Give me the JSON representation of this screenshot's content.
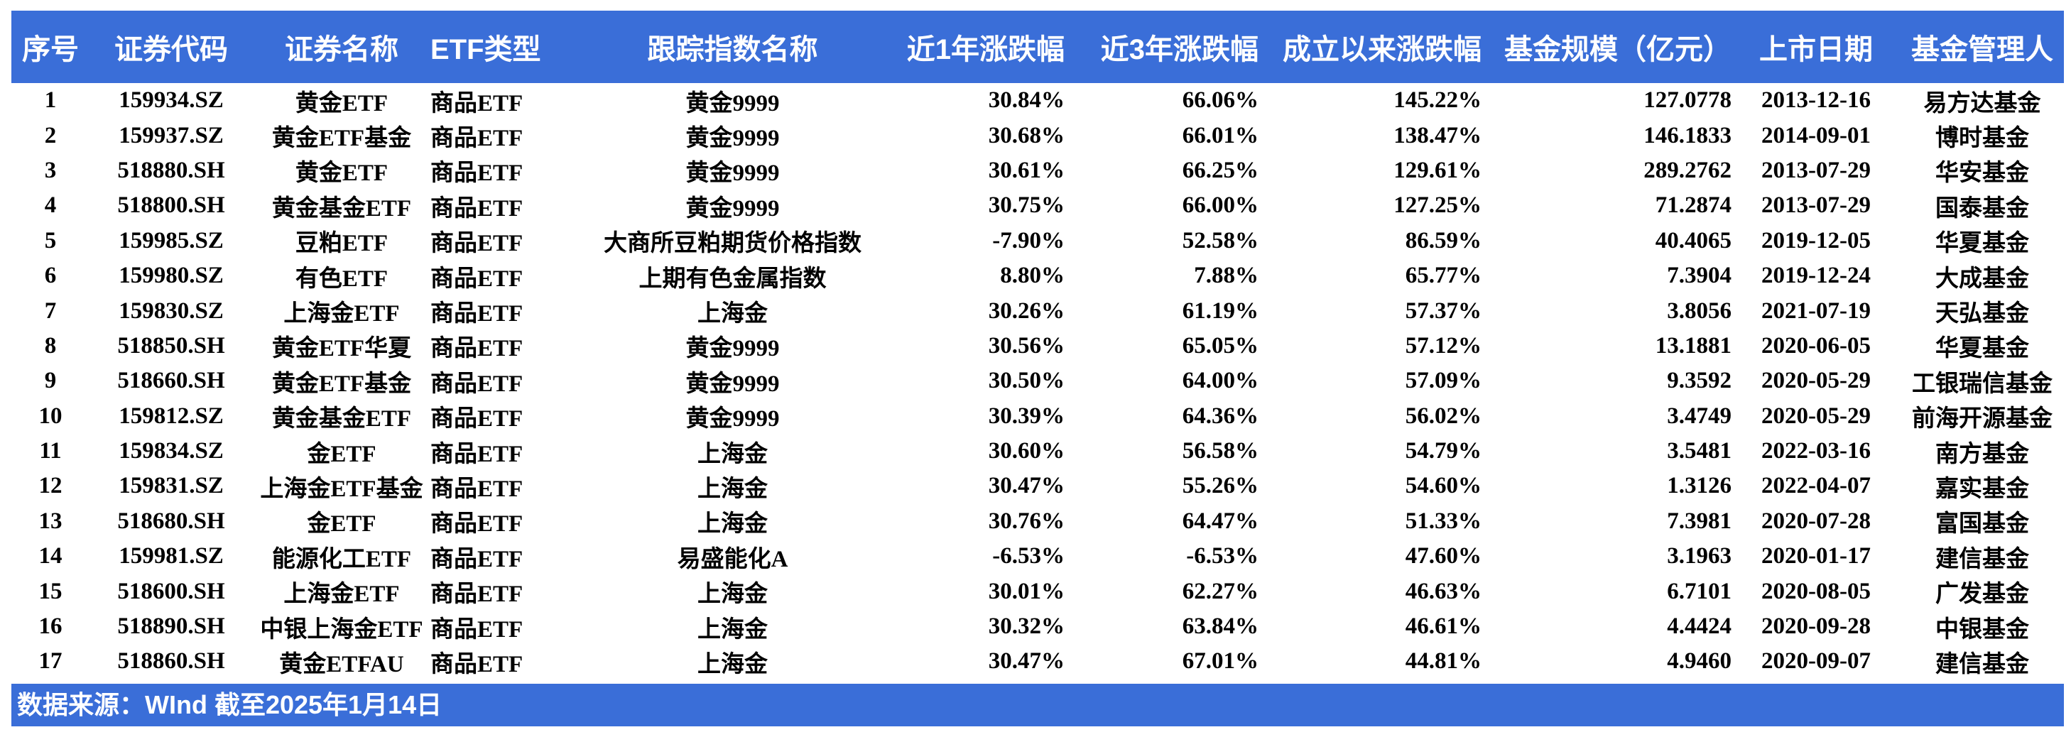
{
  "chart_data": {
    "type": "table",
    "columns": [
      {
        "key": "index",
        "label": "序号"
      },
      {
        "key": "code",
        "label": "证券代码"
      },
      {
        "key": "name",
        "label": "证券名称"
      },
      {
        "key": "etf_type",
        "label": "ETF类型"
      },
      {
        "key": "tracking_index",
        "label": "跟踪指数名称"
      },
      {
        "key": "chg_1y",
        "label": "近1年涨跌幅"
      },
      {
        "key": "chg_3y",
        "label": "近3年涨跌幅"
      },
      {
        "key": "chg_since_inception",
        "label": "成立以来涨跌幅"
      },
      {
        "key": "fund_size_100m",
        "label": "基金规模（亿元）"
      },
      {
        "key": "listing_date",
        "label": "上市日期"
      },
      {
        "key": "fund_manager",
        "label": "基金管理人"
      }
    ],
    "rows": [
      [
        "1",
        "159934.SZ",
        "黄金ETF",
        "商品ETF",
        "黄金9999",
        "30.84%",
        "66.06%",
        "145.22%",
        "127.0778",
        "2013-12-16",
        "易方达基金"
      ],
      [
        "2",
        "159937.SZ",
        "黄金ETF基金",
        "商品ETF",
        "黄金9999",
        "30.68%",
        "66.01%",
        "138.47%",
        "146.1833",
        "2014-09-01",
        "博时基金"
      ],
      [
        "3",
        "518880.SH",
        "黄金ETF",
        "商品ETF",
        "黄金9999",
        "30.61%",
        "66.25%",
        "129.61%",
        "289.2762",
        "2013-07-29",
        "华安基金"
      ],
      [
        "4",
        "518800.SH",
        "黄金基金ETF",
        "商品ETF",
        "黄金9999",
        "30.75%",
        "66.00%",
        "127.25%",
        "71.2874",
        "2013-07-29",
        "国泰基金"
      ],
      [
        "5",
        "159985.SZ",
        "豆粕ETF",
        "商品ETF",
        "大商所豆粕期货价格指数",
        "-7.90%",
        "52.58%",
        "86.59%",
        "40.4065",
        "2019-12-05",
        "华夏基金"
      ],
      [
        "6",
        "159980.SZ",
        "有色ETF",
        "商品ETF",
        "上期有色金属指数",
        "8.80%",
        "7.88%",
        "65.77%",
        "7.3904",
        "2019-12-24",
        "大成基金"
      ],
      [
        "7",
        "159830.SZ",
        "上海金ETF",
        "商品ETF",
        "上海金",
        "30.26%",
        "61.19%",
        "57.37%",
        "3.8056",
        "2021-07-19",
        "天弘基金"
      ],
      [
        "8",
        "518850.SH",
        "黄金ETF华夏",
        "商品ETF",
        "黄金9999",
        "30.56%",
        "65.05%",
        "57.12%",
        "13.1881",
        "2020-06-05",
        "华夏基金"
      ],
      [
        "9",
        "518660.SH",
        "黄金ETF基金",
        "商品ETF",
        "黄金9999",
        "30.50%",
        "64.00%",
        "57.09%",
        "9.3592",
        "2020-05-29",
        "工银瑞信基金"
      ],
      [
        "10",
        "159812.SZ",
        "黄金基金ETF",
        "商品ETF",
        "黄金9999",
        "30.39%",
        "64.36%",
        "56.02%",
        "3.4749",
        "2020-05-29",
        "前海开源基金"
      ],
      [
        "11",
        "159834.SZ",
        "金ETF",
        "商品ETF",
        "上海金",
        "30.60%",
        "56.58%",
        "54.79%",
        "3.5481",
        "2022-03-16",
        "南方基金"
      ],
      [
        "12",
        "159831.SZ",
        "上海金ETF基金",
        "商品ETF",
        "上海金",
        "30.47%",
        "55.26%",
        "54.60%",
        "1.3126",
        "2022-04-07",
        "嘉实基金"
      ],
      [
        "13",
        "518680.SH",
        "金ETF",
        "商品ETF",
        "上海金",
        "30.76%",
        "64.47%",
        "51.33%",
        "7.3981",
        "2020-07-28",
        "富国基金"
      ],
      [
        "14",
        "159981.SZ",
        "能源化工ETF",
        "商品ETF",
        "易盛能化A",
        "-6.53%",
        "-6.53%",
        "47.60%",
        "3.1963",
        "2020-01-17",
        "建信基金"
      ],
      [
        "15",
        "518600.SH",
        "上海金ETF",
        "商品ETF",
        "上海金",
        "30.01%",
        "62.27%",
        "46.63%",
        "6.7101",
        "2020-08-05",
        "广发基金"
      ],
      [
        "16",
        "518890.SH",
        "中银上海金ETF",
        "商品ETF",
        "上海金",
        "30.32%",
        "63.84%",
        "46.61%",
        "4.4424",
        "2020-09-28",
        "中银基金"
      ],
      [
        "17",
        "518860.SH",
        "黄金ETFAU",
        "商品ETF",
        "上海金",
        "30.47%",
        "67.01%",
        "44.81%",
        "4.9460",
        "2020-09-07",
        "建信基金"
      ]
    ]
  },
  "footer": {
    "source_note": "数据来源：WInd 截至2025年1月14日"
  },
  "colors": {
    "band_blue": "#3A6ED8",
    "band_text": "#FFFFFF",
    "body_text": "#000000",
    "background": "#FFFFFF"
  }
}
